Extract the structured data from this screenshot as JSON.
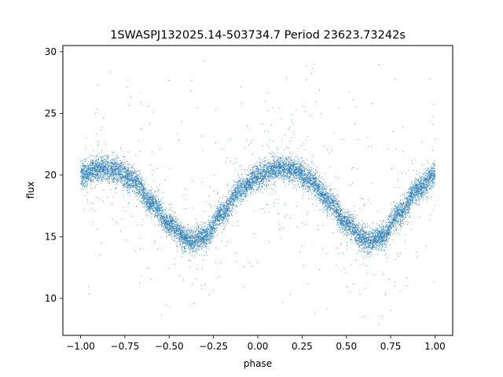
{
  "chart_data": {
    "type": "scatter",
    "title": "1SWASPJ132025.14-503734.7 Period 23623.73242s",
    "xlabel": "phase",
    "ylabel": "flux",
    "xlim": [
      -1.1,
      1.1
    ],
    "ylim": [
      7.0,
      30.5
    ],
    "x_ticks": [
      -1.0,
      -0.75,
      -0.5,
      -0.25,
      0.0,
      0.25,
      0.5,
      0.75,
      1.0
    ],
    "x_tick_labels": [
      "−1.00",
      "−0.75",
      "−0.50",
      "−0.25",
      "0.00",
      "0.25",
      "0.50",
      "0.75",
      "1.00"
    ],
    "y_ticks": [
      10,
      15,
      20,
      25,
      30
    ],
    "y_tick_labels": [
      "10",
      "15",
      "20",
      "25",
      "30"
    ],
    "grid": false,
    "legend": "none",
    "marker_color": "#1f77b4",
    "x_range": [
      -1.0,
      1.0
    ],
    "model_curve": {
      "phase": [
        -1.0,
        -0.9,
        -0.875,
        -0.8,
        -0.7,
        -0.6,
        -0.5,
        -0.4,
        -0.375,
        -0.3,
        -0.2,
        -0.1,
        0.0,
        0.1,
        0.125,
        0.2,
        0.3,
        0.4,
        0.5,
        0.6,
        0.625,
        0.7,
        0.8,
        0.9,
        1.0
      ],
      "flux": [
        20.0,
        20.5,
        20.6,
        20.4,
        19.5,
        17.8,
        16.0,
        14.8,
        14.6,
        15.0,
        16.9,
        18.8,
        19.9,
        20.5,
        20.6,
        20.4,
        19.6,
        17.9,
        16.1,
        14.8,
        14.6,
        15.0,
        16.9,
        18.8,
        20.0
      ]
    },
    "point_count": 12000,
    "scatter_width_flux": 0.5,
    "outlier_fraction": 0.05,
    "outlier_range": [
      8.0,
      29.3
    ]
  }
}
